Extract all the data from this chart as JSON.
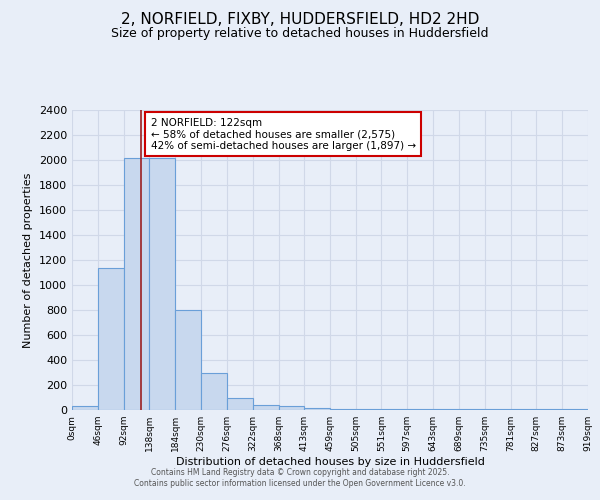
{
  "title": "2, NORFIELD, FIXBY, HUDDERSFIELD, HD2 2HD",
  "subtitle": "Size of property relative to detached houses in Huddersfield",
  "xlabel": "Distribution of detached houses by size in Huddersfield",
  "ylabel": "Number of detached properties",
  "bar_heights": [
    30,
    1140,
    2020,
    2020,
    800,
    300,
    100,
    40,
    30,
    15,
    10,
    5,
    5,
    5,
    5,
    5,
    5,
    5,
    5,
    5
  ],
  "bin_edges": [
    0,
    46,
    92,
    138,
    184,
    230,
    276,
    322,
    368,
    413,
    459,
    505,
    551,
    597,
    643,
    689,
    735,
    781,
    827,
    873,
    919
  ],
  "xtick_labels": [
    "0sqm",
    "46sqm",
    "92sqm",
    "138sqm",
    "184sqm",
    "230sqm",
    "276sqm",
    "322sqm",
    "368sqm",
    "413sqm",
    "459sqm",
    "505sqm",
    "551sqm",
    "597sqm",
    "643sqm",
    "689sqm",
    "735sqm",
    "781sqm",
    "827sqm",
    "873sqm",
    "919sqm"
  ],
  "bar_color": "#c8d8ee",
  "bar_edge_color": "#6a9fd8",
  "vline_x": 122,
  "vline_color": "#9b2020",
  "ylim": [
    0,
    2400
  ],
  "yticks": [
    0,
    200,
    400,
    600,
    800,
    1000,
    1200,
    1400,
    1600,
    1800,
    2000,
    2200,
    2400
  ],
  "annotation_text": "2 NORFIELD: 122sqm\n← 58% of detached houses are smaller (2,575)\n42% of semi-detached houses are larger (1,897) →",
  "annotation_box_color": "#ffffff",
  "annotation_box_edge": "#cc0000",
  "title_fontsize": 11,
  "subtitle_fontsize": 9,
  "footer_text": "Contains HM Land Registry data © Crown copyright and database right 2025.\nContains public sector information licensed under the Open Government Licence v3.0.",
  "bg_color": "#e8eef8",
  "grid_color": "#d0d8e8"
}
